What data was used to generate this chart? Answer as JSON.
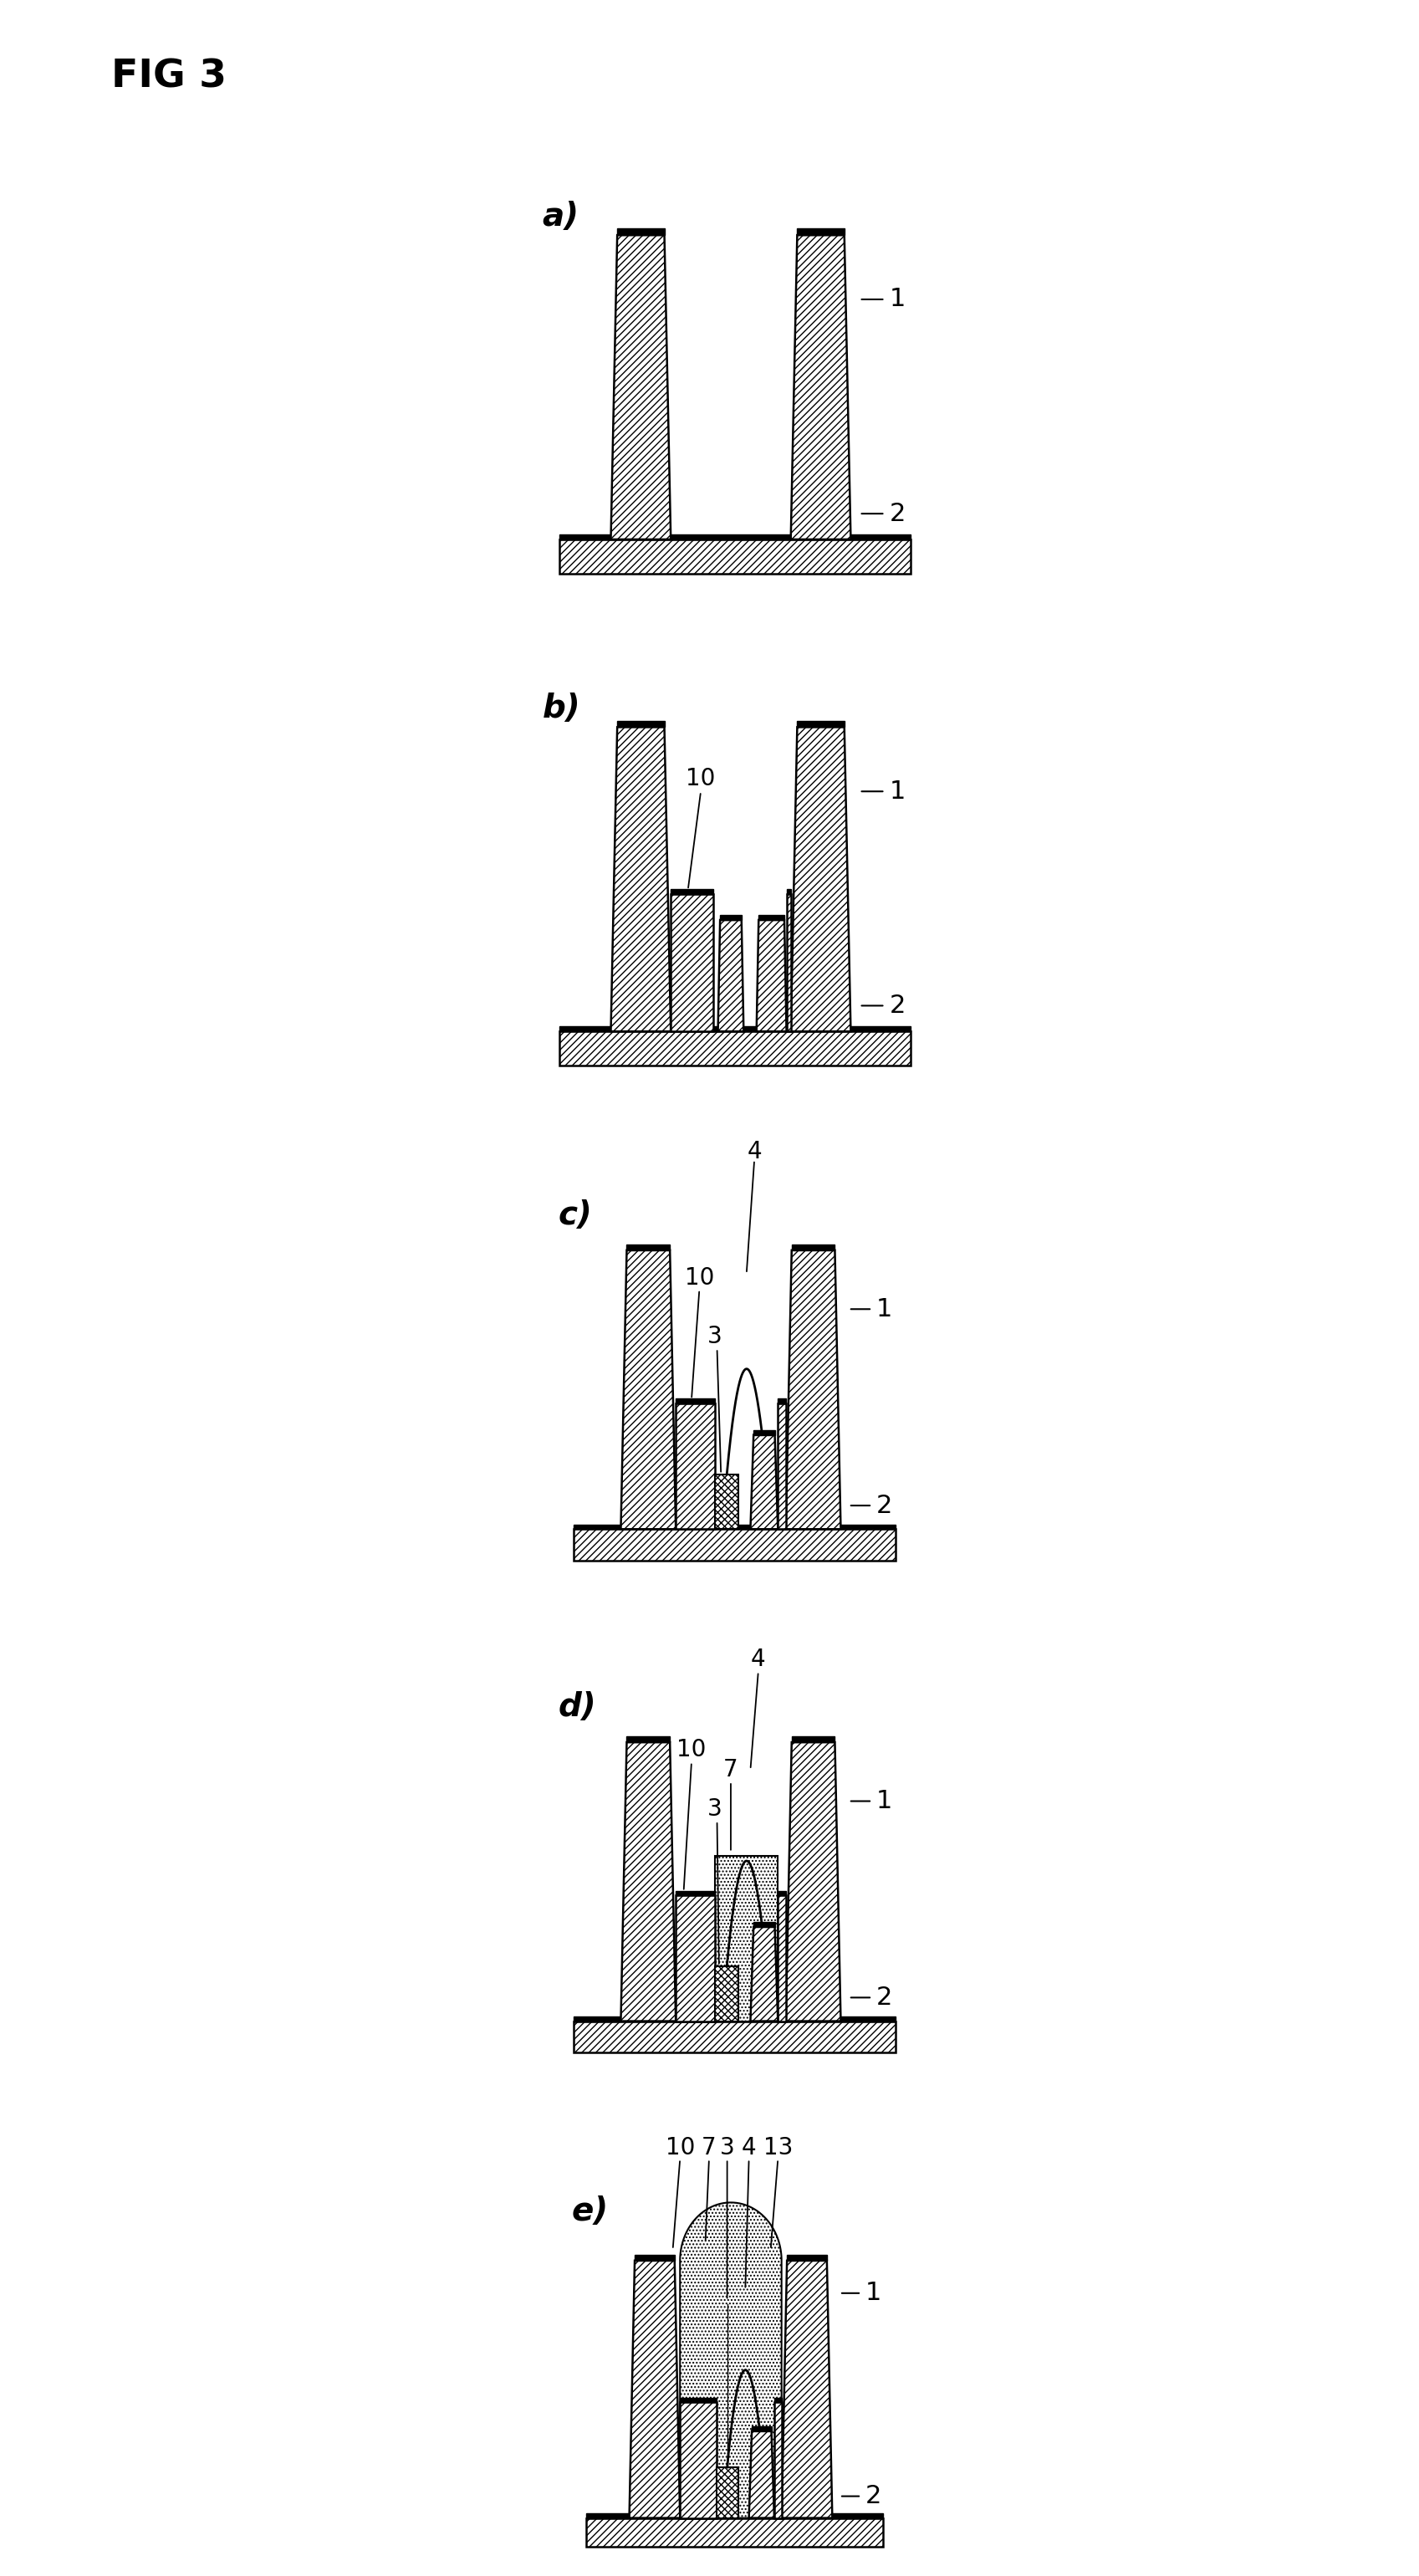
{
  "fig_label": "FIG 3",
  "bg_color": "#ffffff",
  "hatch_diag": "////",
  "hatch_cross": "xxxx",
  "hatch_dot": "....",
  "lw": 1.8,
  "ec": "black",
  "fc_white": "white",
  "panels": [
    "a)",
    "b)",
    "c)",
    "d)",
    "e)"
  ]
}
